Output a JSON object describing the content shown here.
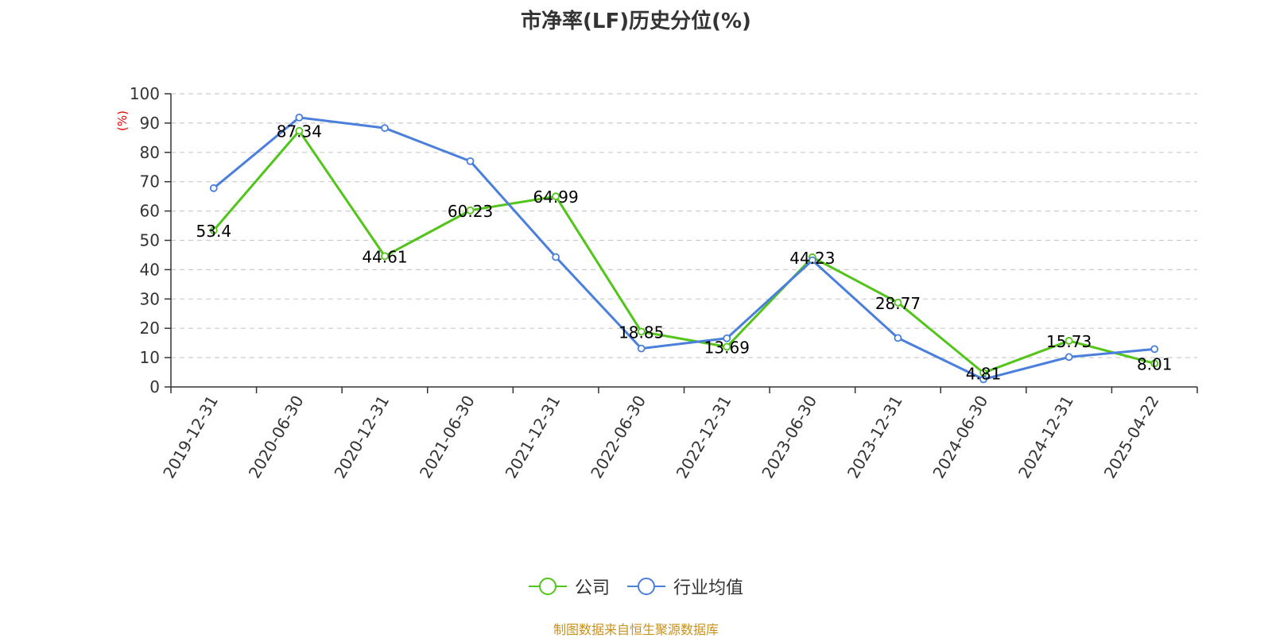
{
  "chart_data": {
    "type": "line",
    "title": "市净率(LF)历史分位(%)",
    "ylabel": "(%)",
    "xlabel": "",
    "categories": [
      "2019-12-31",
      "2020-06-30",
      "2020-12-31",
      "2021-06-30",
      "2021-12-31",
      "2022-06-30",
      "2022-12-31",
      "2023-06-30",
      "2023-12-31",
      "2024-06-30",
      "2024-12-31",
      "2025-04-22"
    ],
    "ylim": [
      0,
      100
    ],
    "yticks": [
      0,
      10,
      20,
      30,
      40,
      50,
      60,
      70,
      80,
      90,
      100
    ],
    "grid": true,
    "legend_position": "bottom",
    "series": [
      {
        "name": "公司",
        "color": "#52c41a",
        "values": [
          53.4,
          87.34,
          44.61,
          60.23,
          64.99,
          18.85,
          13.69,
          44.23,
          28.77,
          4.81,
          15.73,
          8.01
        ],
        "show_labels": true
      },
      {
        "name": "行业均值",
        "color": "#4a7fdc",
        "values": [
          67.8,
          91.9,
          88.3,
          77.0,
          44.3,
          13.1,
          16.6,
          43.2,
          16.7,
          2.6,
          10.2,
          12.9
        ],
        "show_labels": false
      }
    ]
  },
  "source_note": "制图数据来自恒生聚源数据库",
  "colors": {
    "axis": "#333333",
    "grid": "#cccccc",
    "ylabel": "#e60000",
    "source": "#c8921e"
  }
}
